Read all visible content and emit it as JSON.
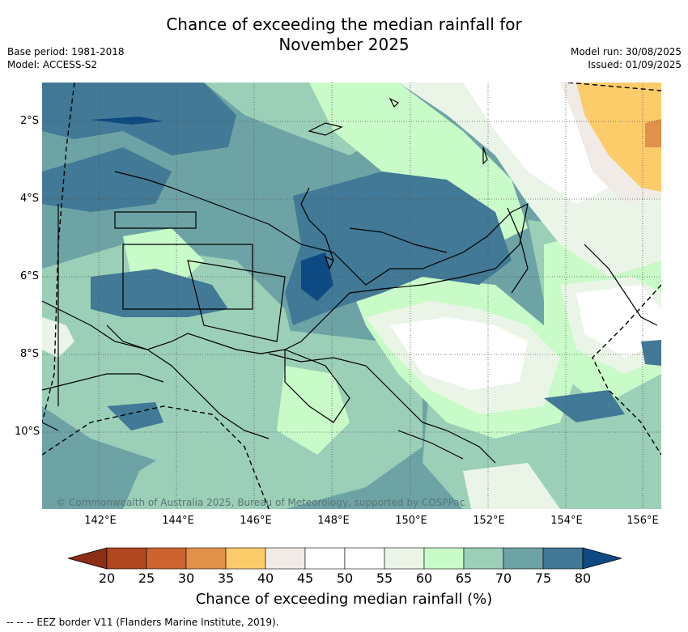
{
  "title_line1": "Chance of exceeding the median rainfall for",
  "title_line2": "November 2025",
  "meta_left": {
    "base_period": "Base period: 1981-2018",
    "model": "Model: ACCESS-S2"
  },
  "meta_right": {
    "model_run": "Model run: 30/08/2025",
    "issued": "Issued: 01/09/2025"
  },
  "x_ticks": [
    "142°E",
    "144°E",
    "146°E",
    "148°E",
    "150°E",
    "152°E",
    "154°E",
    "156°E"
  ],
  "y_ticks": [
    "2°S",
    "4°S",
    "6°S",
    "8°S",
    "10°S"
  ],
  "colorbar": {
    "label": "Chance of exceeding median rainfall (%)",
    "ticks": [
      "20",
      "25",
      "30",
      "35",
      "40",
      "45",
      "50",
      "55",
      "60",
      "65",
      "70",
      "75",
      "80"
    ],
    "colors": [
      "#8b2e14",
      "#b0471e",
      "#cc6330",
      "#e1914a",
      "#fdcc6a",
      "#f0ebe6",
      "#ffffff",
      "#ffffff",
      "#eaf5e8",
      "#c9fbc8",
      "#9ccfb8",
      "#6ea3a6",
      "#417996",
      "#0d4a83"
    ]
  },
  "copyright": "© Commonwealth of Australia 2025, Bureau of Meteorology, supported by COSPPac",
  "footnote": "-- --  -- EEZ border V11 (Flanders Marine Institute, 2019).",
  "map_colors": {
    "c75": "#417996",
    "c80": "#0d4a83",
    "c70": "#6ea3a6",
    "c65": "#9ccfb8",
    "c60": "#c9fbc8",
    "c55": "#eaf5e8",
    "c45": "#f0ebe6",
    "c35": "#fdcc6a",
    "c30": "#e1914a"
  }
}
